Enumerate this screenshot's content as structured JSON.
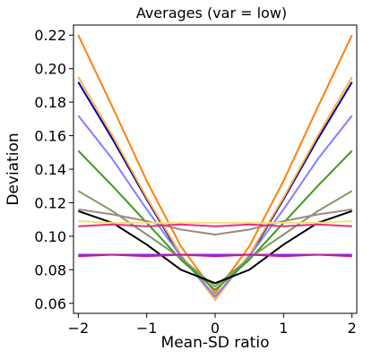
{
  "chart_data": {
    "type": "line",
    "title": "Averages (var = low)",
    "xlabel": "Mean-SD ratio",
    "ylabel": "Deviation",
    "xlim": [
      -2.07,
      2.07
    ],
    "ylim": [
      0.054,
      0.226
    ],
    "xticks": [
      -2,
      -1,
      0,
      1,
      2
    ],
    "xtick_labels": [
      "−2",
      "−1",
      "0",
      "1",
      "2"
    ],
    "yticks": [
      0.06,
      0.08,
      0.1,
      0.12,
      0.14,
      0.16,
      0.18,
      0.2,
      0.22
    ],
    "ytick_labels": [
      "0.06",
      "0.08",
      "0.10",
      "0.12",
      "0.14",
      "0.16",
      "0.18",
      "0.20",
      "0.22"
    ],
    "grid": false,
    "legend": "none",
    "series": [
      {
        "color": "#ff7f0e",
        "x": [
          -2,
          -1.5,
          -1,
          -0.5,
          0,
          0.5,
          1,
          1.5,
          2
        ],
        "y": [
          0.22,
          0.177,
          0.133,
          0.094,
          0.066,
          0.094,
          0.133,
          0.177,
          0.22
        ]
      },
      {
        "color": "#0000a0",
        "x": [
          -2,
          -1.5,
          -1,
          -0.5,
          0,
          0.5,
          1,
          1.5,
          2
        ],
        "y": [
          0.192,
          0.158,
          0.122,
          0.088,
          0.064,
          0.088,
          0.122,
          0.158,
          0.192
        ]
      },
      {
        "color": "#ffb347",
        "x": [
          -2,
          -1.5,
          -1,
          -0.5,
          0,
          0.5,
          1,
          1.5,
          2
        ],
        "y": [
          0.195,
          0.16,
          0.123,
          0.089,
          0.062,
          0.089,
          0.123,
          0.16,
          0.195
        ]
      },
      {
        "color": "#8080ff",
        "x": [
          -2,
          -1.5,
          -1,
          -0.5,
          0,
          0.5,
          1,
          1.5,
          2
        ],
        "y": [
          0.172,
          0.146,
          0.116,
          0.088,
          0.064,
          0.088,
          0.116,
          0.146,
          0.172
        ]
      },
      {
        "color": "#3a9a1a",
        "x": [
          -2,
          -1.5,
          -1,
          -0.5,
          0,
          0.5,
          1,
          1.5,
          2
        ],
        "y": [
          0.151,
          0.13,
          0.108,
          0.086,
          0.068,
          0.086,
          0.108,
          0.13,
          0.151
        ]
      },
      {
        "color": "#7a9a60",
        "x": [
          -2,
          -1.5,
          -1,
          -0.5,
          0,
          0.5,
          1,
          1.5,
          2
        ],
        "y": [
          0.127,
          0.115,
          0.101,
          0.087,
          0.07,
          0.087,
          0.101,
          0.115,
          0.127
        ]
      },
      {
        "color": "#000000",
        "x": [
          -2,
          -1.5,
          -1,
          -0.5,
          0,
          0.5,
          1,
          1.5,
          2
        ],
        "y": [
          0.115,
          0.108,
          0.095,
          0.08,
          0.072,
          0.08,
          0.095,
          0.108,
          0.115
        ]
      },
      {
        "color": "#a08880",
        "x": [
          -2,
          -1.5,
          -1,
          -0.5,
          0,
          0.5,
          1,
          1.5,
          2
        ],
        "y": [
          0.116,
          0.113,
          0.109,
          0.104,
          0.101,
          0.104,
          0.109,
          0.113,
          0.116
        ]
      },
      {
        "color": "#f0e080",
        "x": [
          -2,
          -1.5,
          -1,
          -0.5,
          0,
          0.5,
          1,
          1.5,
          2
        ],
        "y": [
          0.109,
          0.108,
          0.108,
          0.108,
          0.108,
          0.108,
          0.108,
          0.108,
          0.109
        ]
      },
      {
        "color": "#e8307a",
        "x": [
          -2,
          -1.5,
          -1,
          -0.5,
          0,
          0.5,
          1,
          1.5,
          2
        ],
        "y": [
          0.106,
          0.107,
          0.106,
          0.107,
          0.106,
          0.107,
          0.106,
          0.107,
          0.106
        ]
      },
      {
        "color": "#8a2be2",
        "x": [
          -2,
          -1.5,
          -1,
          -0.5,
          0,
          0.5,
          1,
          1.5,
          2
        ],
        "y": [
          0.089,
          0.089,
          0.089,
          0.089,
          0.089,
          0.089,
          0.089,
          0.089,
          0.089
        ]
      },
      {
        "color": "#c0208a",
        "x": [
          -2,
          -1.5,
          -1,
          -0.5,
          0,
          0.5,
          1,
          1.5,
          2
        ],
        "y": [
          0.088,
          0.089,
          0.088,
          0.089,
          0.088,
          0.089,
          0.088,
          0.089,
          0.088
        ]
      }
    ]
  }
}
